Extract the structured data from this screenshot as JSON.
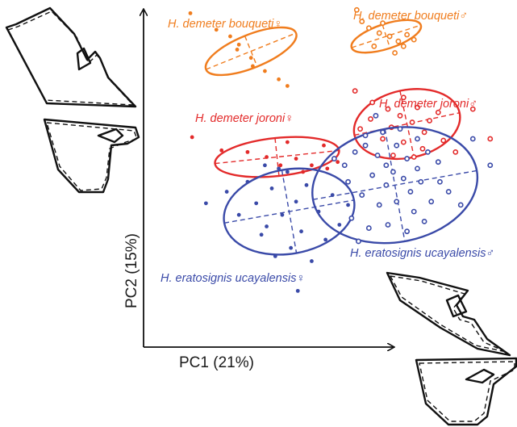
{
  "chart_data": {
    "type": "scatter",
    "title": "",
    "xlabel": "PC1 (21%)",
    "ylabel": "PC2 (15%)",
    "xlim": [
      -0.1,
      0.115
    ],
    "ylim": [
      -0.07,
      0.14
    ],
    "grid": false,
    "legend": "labels placed next to each group",
    "series": [
      {
        "name": "H. demeter bouqueti♀",
        "color": "#f07d1e",
        "marker": "dot",
        "points": [
          [
            -0.073,
            0.132
          ],
          [
            -0.058,
            0.122
          ],
          [
            -0.05,
            0.118
          ],
          [
            -0.046,
            0.11
          ],
          [
            -0.038,
            0.105
          ],
          [
            -0.037,
            0.1
          ],
          [
            -0.03,
            0.097
          ],
          [
            -0.022,
            0.092
          ],
          [
            -0.017,
            0.088
          ],
          [
            -0.045,
            0.113
          ]
        ],
        "ellipse": {
          "center": [
            -0.038,
            0.109
          ],
          "rx": 0.028,
          "ry": 0.01,
          "rotation_deg": -22
        }
      },
      {
        "name": "H. demeter bouqueti♂",
        "color": "#f07d1e",
        "marker": "circle",
        "points": [
          [
            0.023,
            0.134
          ],
          [
            0.026,
            0.127
          ],
          [
            0.03,
            0.123
          ],
          [
            0.036,
            0.12
          ],
          [
            0.038,
            0.126
          ],
          [
            0.042,
            0.118
          ],
          [
            0.047,
            0.115
          ],
          [
            0.05,
            0.112
          ],
          [
            0.052,
            0.119
          ],
          [
            0.056,
            0.116
          ],
          [
            0.033,
            0.112
          ],
          [
            0.045,
            0.108
          ]
        ],
        "ellipse": {
          "center": [
            0.04,
            0.118
          ],
          "rx": 0.021,
          "ry": 0.0075,
          "rotation_deg": -18
        }
      },
      {
        "name": "H. demeter joroni♀",
        "color": "#e32a2a",
        "marker": "dot",
        "points": [
          [
            -0.072,
            0.057
          ],
          [
            -0.055,
            0.049
          ],
          [
            -0.04,
            0.048
          ],
          [
            -0.029,
            0.045
          ],
          [
            -0.021,
            0.04
          ],
          [
            -0.012,
            0.044
          ],
          [
            -0.003,
            0.04
          ],
          [
            0.006,
            0.038
          ],
          [
            0.012,
            0.042
          ],
          [
            -0.017,
            0.054
          ],
          [
            -0.008,
            0.036
          ],
          [
            0.004,
            0.052
          ]
        ],
        "ellipse": {
          "center": [
            -0.023,
            0.045
          ],
          "rx": 0.036,
          "ry": 0.0115,
          "rotation_deg": -6
        }
      },
      {
        "name": "H. demeter joroni♂",
        "color": "#e32a2a",
        "marker": "circle",
        "points": [
          [
            0.022,
            0.085
          ],
          [
            0.032,
            0.078
          ],
          [
            0.041,
            0.074
          ],
          [
            0.05,
            0.081
          ],
          [
            0.058,
            0.075
          ],
          [
            0.07,
            0.072
          ],
          [
            0.031,
            0.068
          ],
          [
            0.043,
            0.063
          ],
          [
            0.055,
            0.066
          ],
          [
            0.062,
            0.06
          ],
          [
            0.038,
            0.056
          ],
          [
            0.05,
            0.054
          ],
          [
            0.061,
            0.05
          ],
          [
            0.073,
            0.055
          ],
          [
            0.08,
            0.048
          ],
          [
            0.048,
            0.07
          ],
          [
            0.025,
            0.062
          ],
          [
            0.056,
            0.045
          ],
          [
            0.09,
            0.074
          ],
          [
            0.1,
            0.056
          ],
          [
            0.044,
            0.046
          ],
          [
            0.065,
            0.067
          ]
        ],
        "ellipse": {
          "center": [
            0.052,
            0.065
          ],
          "rx": 0.031,
          "ry": 0.0205,
          "rotation_deg": -12
        }
      },
      {
        "name": "H. eratosignis ucayalensis♀",
        "color": "#3a4aa8",
        "marker": "dot",
        "points": [
          [
            -0.064,
            0.017
          ],
          [
            -0.052,
            0.024
          ],
          [
            -0.045,
            0.01
          ],
          [
            -0.04,
            0.03
          ],
          [
            -0.035,
            0.017
          ],
          [
            -0.029,
            0.003
          ],
          [
            -0.026,
            0.026
          ],
          [
            -0.02,
            0.01
          ],
          [
            -0.017,
            0.036
          ],
          [
            -0.012,
            0.018
          ],
          [
            -0.009,
            0.0
          ],
          [
            -0.006,
            0.028
          ],
          [
            0.001,
            0.012
          ],
          [
            0.005,
            -0.005
          ],
          [
            0.009,
            0.022
          ],
          [
            0.013,
            0.004
          ],
          [
            0.018,
            0.016
          ],
          [
            -0.032,
            -0.002
          ],
          [
            -0.024,
            -0.015
          ],
          [
            -0.015,
            -0.01
          ],
          [
            -0.003,
            -0.018
          ],
          [
            -0.011,
            -0.036
          ],
          [
            -0.022,
            0.038
          ],
          [
            -0.03,
            0.04
          ]
        ],
        "ellipse": {
          "center": [
            -0.016,
            0.012
          ],
          "rx": 0.038,
          "ry": 0.0255,
          "rotation_deg": -10
        }
      },
      {
        "name": "H. eratosignis ucayalensis♂",
        "color": "#3a4aa8",
        "marker": "circle",
        "points": [
          [
            0.01,
            0.044
          ],
          [
            0.016,
            0.04
          ],
          [
            0.022,
            0.048
          ],
          [
            0.028,
            0.052
          ],
          [
            0.035,
            0.046
          ],
          [
            0.04,
            0.04
          ],
          [
            0.046,
            0.052
          ],
          [
            0.052,
            0.044
          ],
          [
            0.058,
            0.038
          ],
          [
            0.064,
            0.048
          ],
          [
            0.07,
            0.042
          ],
          [
            0.032,
            0.034
          ],
          [
            0.04,
            0.028
          ],
          [
            0.05,
            0.032
          ],
          [
            0.06,
            0.03
          ],
          [
            0.026,
            0.022
          ],
          [
            0.036,
            0.016
          ],
          [
            0.046,
            0.018
          ],
          [
            0.056,
            0.012
          ],
          [
            0.066,
            0.018
          ],
          [
            0.076,
            0.024
          ],
          [
            0.02,
            0.008
          ],
          [
            0.03,
            0.002
          ],
          [
            0.041,
            0.004
          ],
          [
            0.052,
            0.0
          ],
          [
            0.062,
            0.006
          ],
          [
            0.028,
            0.058
          ],
          [
            0.038,
            0.06
          ],
          [
            0.048,
            0.062
          ],
          [
            0.018,
            0.03
          ],
          [
            0.058,
            0.056
          ],
          [
            0.071,
            0.03
          ],
          [
            0.083,
            0.016
          ],
          [
            0.024,
            -0.006
          ],
          [
            0.1,
            0.04
          ],
          [
            0.09,
            0.056
          ],
          [
            0.044,
            0.036
          ],
          [
            0.034,
            0.07
          ],
          [
            0.054,
            0.024
          ]
        ],
        "ellipse": {
          "center": [
            0.045,
            0.028
          ],
          "rx": 0.048,
          "ry": 0.0345,
          "rotation_deg": -10
        }
      }
    ]
  },
  "labels": {
    "bouqueti_f": "H. demeter bouqueti♀",
    "bouqueti_m": "H. demeter bouqueti♂",
    "joroni_f": "H. demeter joroni♀",
    "joroni_m": "H. demeter joroni♂",
    "erato_f": "H. eratosignis ucayalensis♀",
    "erato_m": "H. eratosignis ucayalensis♂"
  }
}
